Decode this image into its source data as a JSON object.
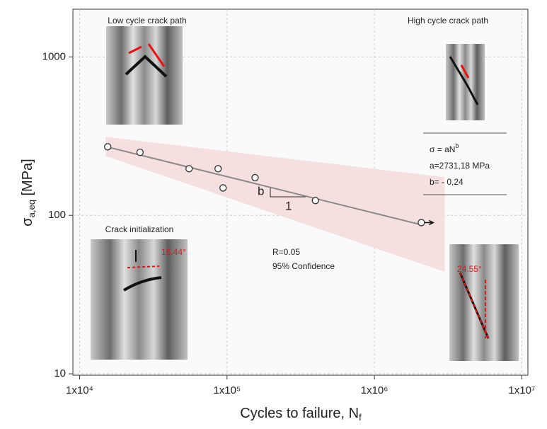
{
  "chart_data": {
    "type": "scatter",
    "x_label": {
      "text": "Cycles to failure, N",
      "subscript": "f"
    },
    "y_label": {
      "symbol": "σ",
      "subscript": "a,eq",
      "unit": " [MPa]"
    },
    "xscale": "log",
    "yscale": "log",
    "grid": true,
    "xlim": [
      9000,
      11000000
    ],
    "ylim": [
      9.8,
      2000
    ],
    "xticks": [
      {
        "value": 10000,
        "label": "1x10⁴"
      },
      {
        "value": 100000,
        "label": "1x10⁵"
      },
      {
        "value": 1000000,
        "label": "1x10⁶"
      },
      {
        "value": 10000000,
        "label": "1x10⁷"
      }
    ],
    "yticks": [
      10,
      100,
      1000
    ],
    "series": [
      {
        "color": "#333333",
        "x": [
          15500,
          25700,
          55300,
          87000,
          94000,
          155000,
          398000,
          2080000
        ],
        "values": [
          271,
          250,
          197,
          197,
          149,
          173,
          124,
          90
        ]
      }
    ],
    "fit": {
      "color": "#8a8a8a",
      "x": [
        15000,
        2000000
      ],
      "values": [
        272,
        88
      ]
    },
    "band": {
      "color": "#f4dcdc",
      "x": [
        15000,
        3000000
      ],
      "upper": [
        313,
        174
      ],
      "lower": [
        237,
        44
      ]
    },
    "fit_box": {
      "equation": "σ = aN",
      "exponent": "b",
      "a": "a=2731,18 MPa",
      "b": "b= - 0,24"
    },
    "slope": {
      "rise": "b",
      "run": "1"
    },
    "conditions": [
      "R=0.05",
      "95% Confidence"
    ],
    "insets": {
      "low": "Low cycle crack path",
      "high": "High cycle crack path",
      "init": "Crack initialization",
      "angle_init": "16.44°",
      "angle_high": "24.55°"
    }
  }
}
